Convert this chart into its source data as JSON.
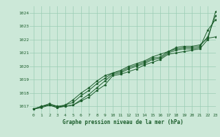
{
  "title": "Graphe pression niveau de la mer (hPa)",
  "bg_color": "#cce8d8",
  "grid_color": "#99ccb3",
  "line_color": "#1a5c2a",
  "xlim": [
    -0.5,
    23
  ],
  "ylim": [
    1016.5,
    1024.5
  ],
  "yticks": [
    1017,
    1018,
    1019,
    1020,
    1021,
    1022,
    1023,
    1024
  ],
  "xticks": [
    0,
    1,
    2,
    3,
    4,
    5,
    6,
    7,
    8,
    9,
    10,
    11,
    12,
    13,
    14,
    15,
    16,
    17,
    18,
    19,
    20,
    21,
    22,
    23
  ],
  "series": [
    [
      1016.8,
      1016.9,
      1017.1,
      1016.9,
      1017.0,
      1017.1,
      1017.4,
      1017.7,
      1018.2,
      1018.6,
      1019.3,
      1019.4,
      1019.6,
      1019.8,
      1020.1,
      1020.3,
      1020.5,
      1020.9,
      1021.0,
      1021.1,
      1021.2,
      1021.3,
      1022.0,
      1024.1
    ],
    [
      1016.8,
      1017.0,
      1017.1,
      1017.0,
      1017.0,
      1017.1,
      1017.5,
      1017.9,
      1018.4,
      1018.9,
      1019.4,
      1019.5,
      1019.8,
      1020.0,
      1020.2,
      1020.5,
      1020.6,
      1021.0,
      1021.2,
      1021.3,
      1021.3,
      1021.4,
      1022.7,
      1023.5
    ],
    [
      1016.8,
      1017.0,
      1017.1,
      1016.9,
      1017.1,
      1017.3,
      1017.8,
      1018.2,
      1018.7,
      1019.1,
      1019.5,
      1019.6,
      1019.9,
      1020.1,
      1020.3,
      1020.6,
      1020.7,
      1021.1,
      1021.3,
      1021.4,
      1021.4,
      1021.5,
      1022.2,
      1023.8
    ],
    [
      1016.8,
      1017.0,
      1017.2,
      1017.0,
      1017.1,
      1017.5,
      1018.0,
      1018.4,
      1018.9,
      1019.3,
      1019.5,
      1019.7,
      1020.0,
      1020.2,
      1020.4,
      1020.7,
      1020.9,
      1021.1,
      1021.4,
      1021.5,
      1021.5,
      1021.6,
      1022.1,
      1022.2
    ]
  ]
}
